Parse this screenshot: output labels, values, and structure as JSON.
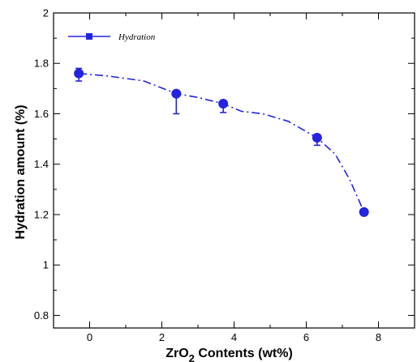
{
  "chart_data": {
    "type": "line",
    "xlabel": {
      "base": "ZrO",
      "subscript": "2",
      "rest": " Contents (wt%)"
    },
    "ylabel": "Hydration amount (%)",
    "xlim": [
      -1,
      9
    ],
    "ylim": [
      0.75,
      2.0
    ],
    "xticks": [
      0,
      2,
      4,
      6,
      8
    ],
    "xtick_labels": [
      "0",
      "2",
      "4",
      "6",
      "8"
    ],
    "yticks": [
      0.8,
      1.0,
      1.2,
      1.4,
      1.6,
      1.8,
      2.0
    ],
    "ytick_labels": [
      "0.8",
      "1",
      "1.2",
      "1.4",
      "1.6",
      "1.8",
      "2"
    ],
    "legend_position": "top-left",
    "series": [
      {
        "name": "Hydration",
        "color": "#2323e0",
        "line_style": "dash-dot",
        "marker": "circle",
        "points": [
          {
            "x": -0.3,
            "y": 1.76,
            "err_low": 0.03,
            "err_high": 0.02
          },
          {
            "x": 2.4,
            "y": 1.68,
            "err_low": 0.08,
            "err_high": 0.0
          },
          {
            "x": 3.7,
            "y": 1.64,
            "err_low": 0.035,
            "err_high": 0.0
          },
          {
            "x": 6.3,
            "y": 1.505,
            "err_low": 0.03,
            "err_high": 0.0
          },
          {
            "x": 7.6,
            "y": 1.21,
            "err_low": 0.01,
            "err_high": 0.01
          }
        ],
        "curve": [
          [
            -0.3,
            1.76
          ],
          [
            0.5,
            1.75
          ],
          [
            1.5,
            1.73
          ],
          [
            2.4,
            1.68
          ],
          [
            3.0,
            1.665
          ],
          [
            3.7,
            1.64
          ],
          [
            4.2,
            1.61
          ],
          [
            4.8,
            1.6
          ],
          [
            5.5,
            1.57
          ],
          [
            6.3,
            1.505
          ],
          [
            6.8,
            1.44
          ],
          [
            7.2,
            1.34
          ],
          [
            7.6,
            1.21
          ]
        ]
      }
    ]
  }
}
